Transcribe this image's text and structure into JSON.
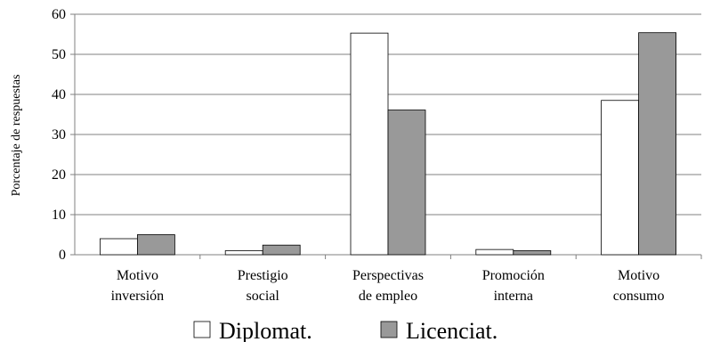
{
  "chart_data": {
    "type": "bar",
    "categories": [
      [
        "Motivo",
        "inversión"
      ],
      [
        "Prestigio",
        "social"
      ],
      [
        "Perspectivas",
        "de empleo"
      ],
      [
        "Promoción",
        "interna"
      ],
      [
        "Motivo",
        "consumo"
      ]
    ],
    "series": [
      {
        "name": "Diplomat.",
        "values": [
          4.0,
          1.0,
          55.3,
          1.3,
          38.5
        ],
        "color": "#ffffff"
      },
      {
        "name": "Licenciat.",
        "values": [
          5.0,
          2.4,
          36.1,
          1.0,
          55.4
        ],
        "color": "#999999"
      }
    ],
    "ylabel": "Porcentaje de respuestas",
    "xlabel": "",
    "ylim": [
      0,
      60
    ],
    "yticks": [
      0,
      10,
      20,
      30,
      40,
      50,
      60
    ],
    "grid": true,
    "legend": "bottom",
    "axis_color": "#808080",
    "bar_stroke": "#000000"
  }
}
